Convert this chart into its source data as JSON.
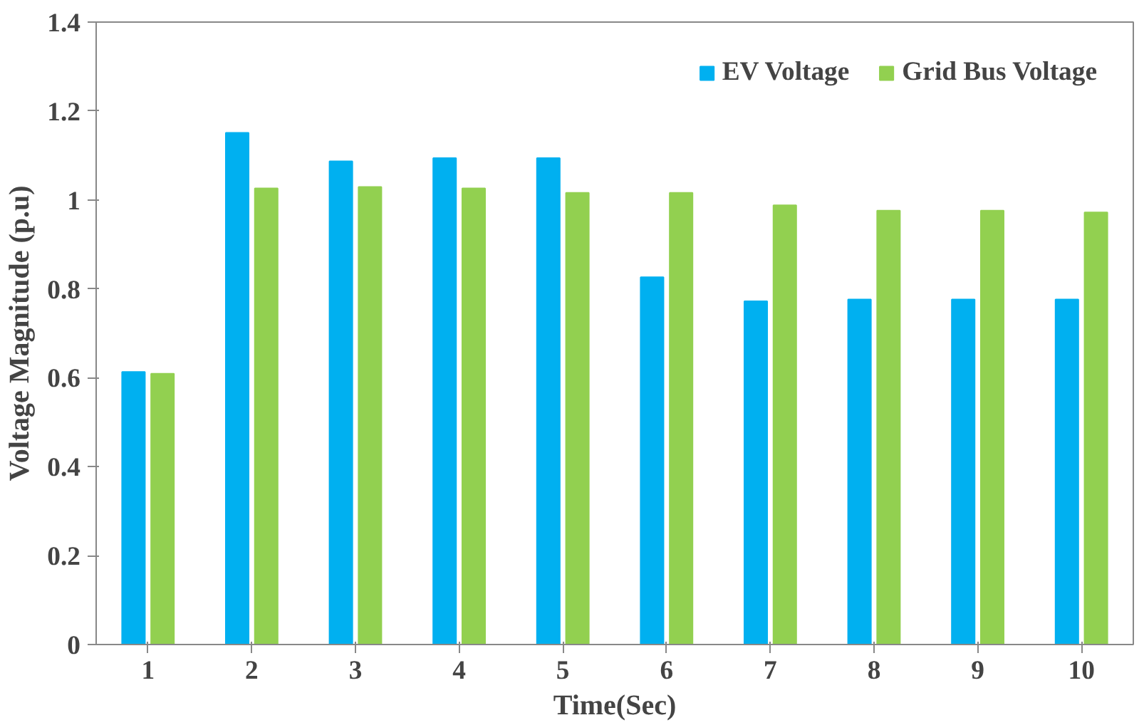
{
  "chart_data": {
    "type": "bar",
    "xlabel": "Time(Sec)",
    "ylabel": "Voltage Magnitude (p.u)",
    "categories": [
      "1",
      "2",
      "3",
      "4",
      "5",
      "6",
      "7",
      "8",
      "9",
      "10"
    ],
    "series": [
      {
        "name": "EV Voltage",
        "color": "#00b0f0",
        "values": [
          0.613,
          1.151,
          1.087,
          1.094,
          1.094,
          0.826,
          0.772,
          0.776,
          0.776,
          0.776
        ]
      },
      {
        "name": "Grid Bus Voltage",
        "color": "#92d050",
        "values": [
          0.609,
          1.026,
          1.029,
          1.026,
          1.016,
          1.016,
          0.988,
          0.976,
          0.976,
          0.972
        ]
      }
    ],
    "ylim": [
      0,
      1.4
    ],
    "yticks": [
      0,
      0.2,
      0.4,
      0.6,
      0.8,
      1,
      1.2,
      1.4
    ],
    "grid": false,
    "legend": "top right"
  }
}
